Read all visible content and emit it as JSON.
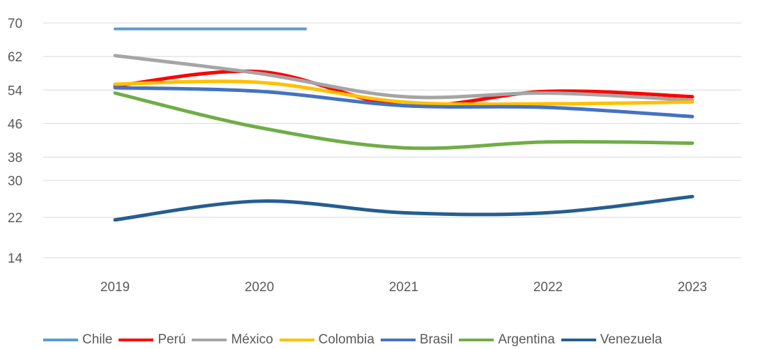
{
  "chart_data": {
    "type": "line",
    "categories": [
      "2019",
      "2020",
      "2021",
      "2022",
      "2023"
    ],
    "y_ticks": [
      14,
      22,
      30,
      38,
      46,
      54,
      62,
      70
    ],
    "grid": "horizontal",
    "legend_position": "bottom",
    "smooth": true,
    "series": [
      {
        "name": "Chile",
        "color": "#5B9BD5",
        "values": [
          68,
          68,
          null,
          null,
          null
        ],
        "x_end": 1.32
      },
      {
        "name": "Perú",
        "color": "#FF0000",
        "values": [
          51,
          55,
          45.5,
          49.5,
          48
        ]
      },
      {
        "name": "México",
        "color": "#A5A5A5",
        "values": [
          59.5,
          54.5,
          48,
          49,
          47
        ]
      },
      {
        "name": "Colombia",
        "color": "#FFC000",
        "values": [
          51.5,
          52,
          46.5,
          46,
          46.5
        ]
      },
      {
        "name": "Brasil",
        "color": "#4472C4",
        "values": [
          50.5,
          49.5,
          45.5,
          45,
          42.5
        ]
      },
      {
        "name": "Argentina",
        "color": "#70AD47",
        "values": [
          49,
          39.5,
          35.5,
          36.5,
          36.3
        ]
      },
      {
        "name": "Venezuela",
        "color": "#255E91",
        "values": [
          21.5,
          25.5,
          23,
          23,
          26.5
        ]
      }
    ]
  }
}
